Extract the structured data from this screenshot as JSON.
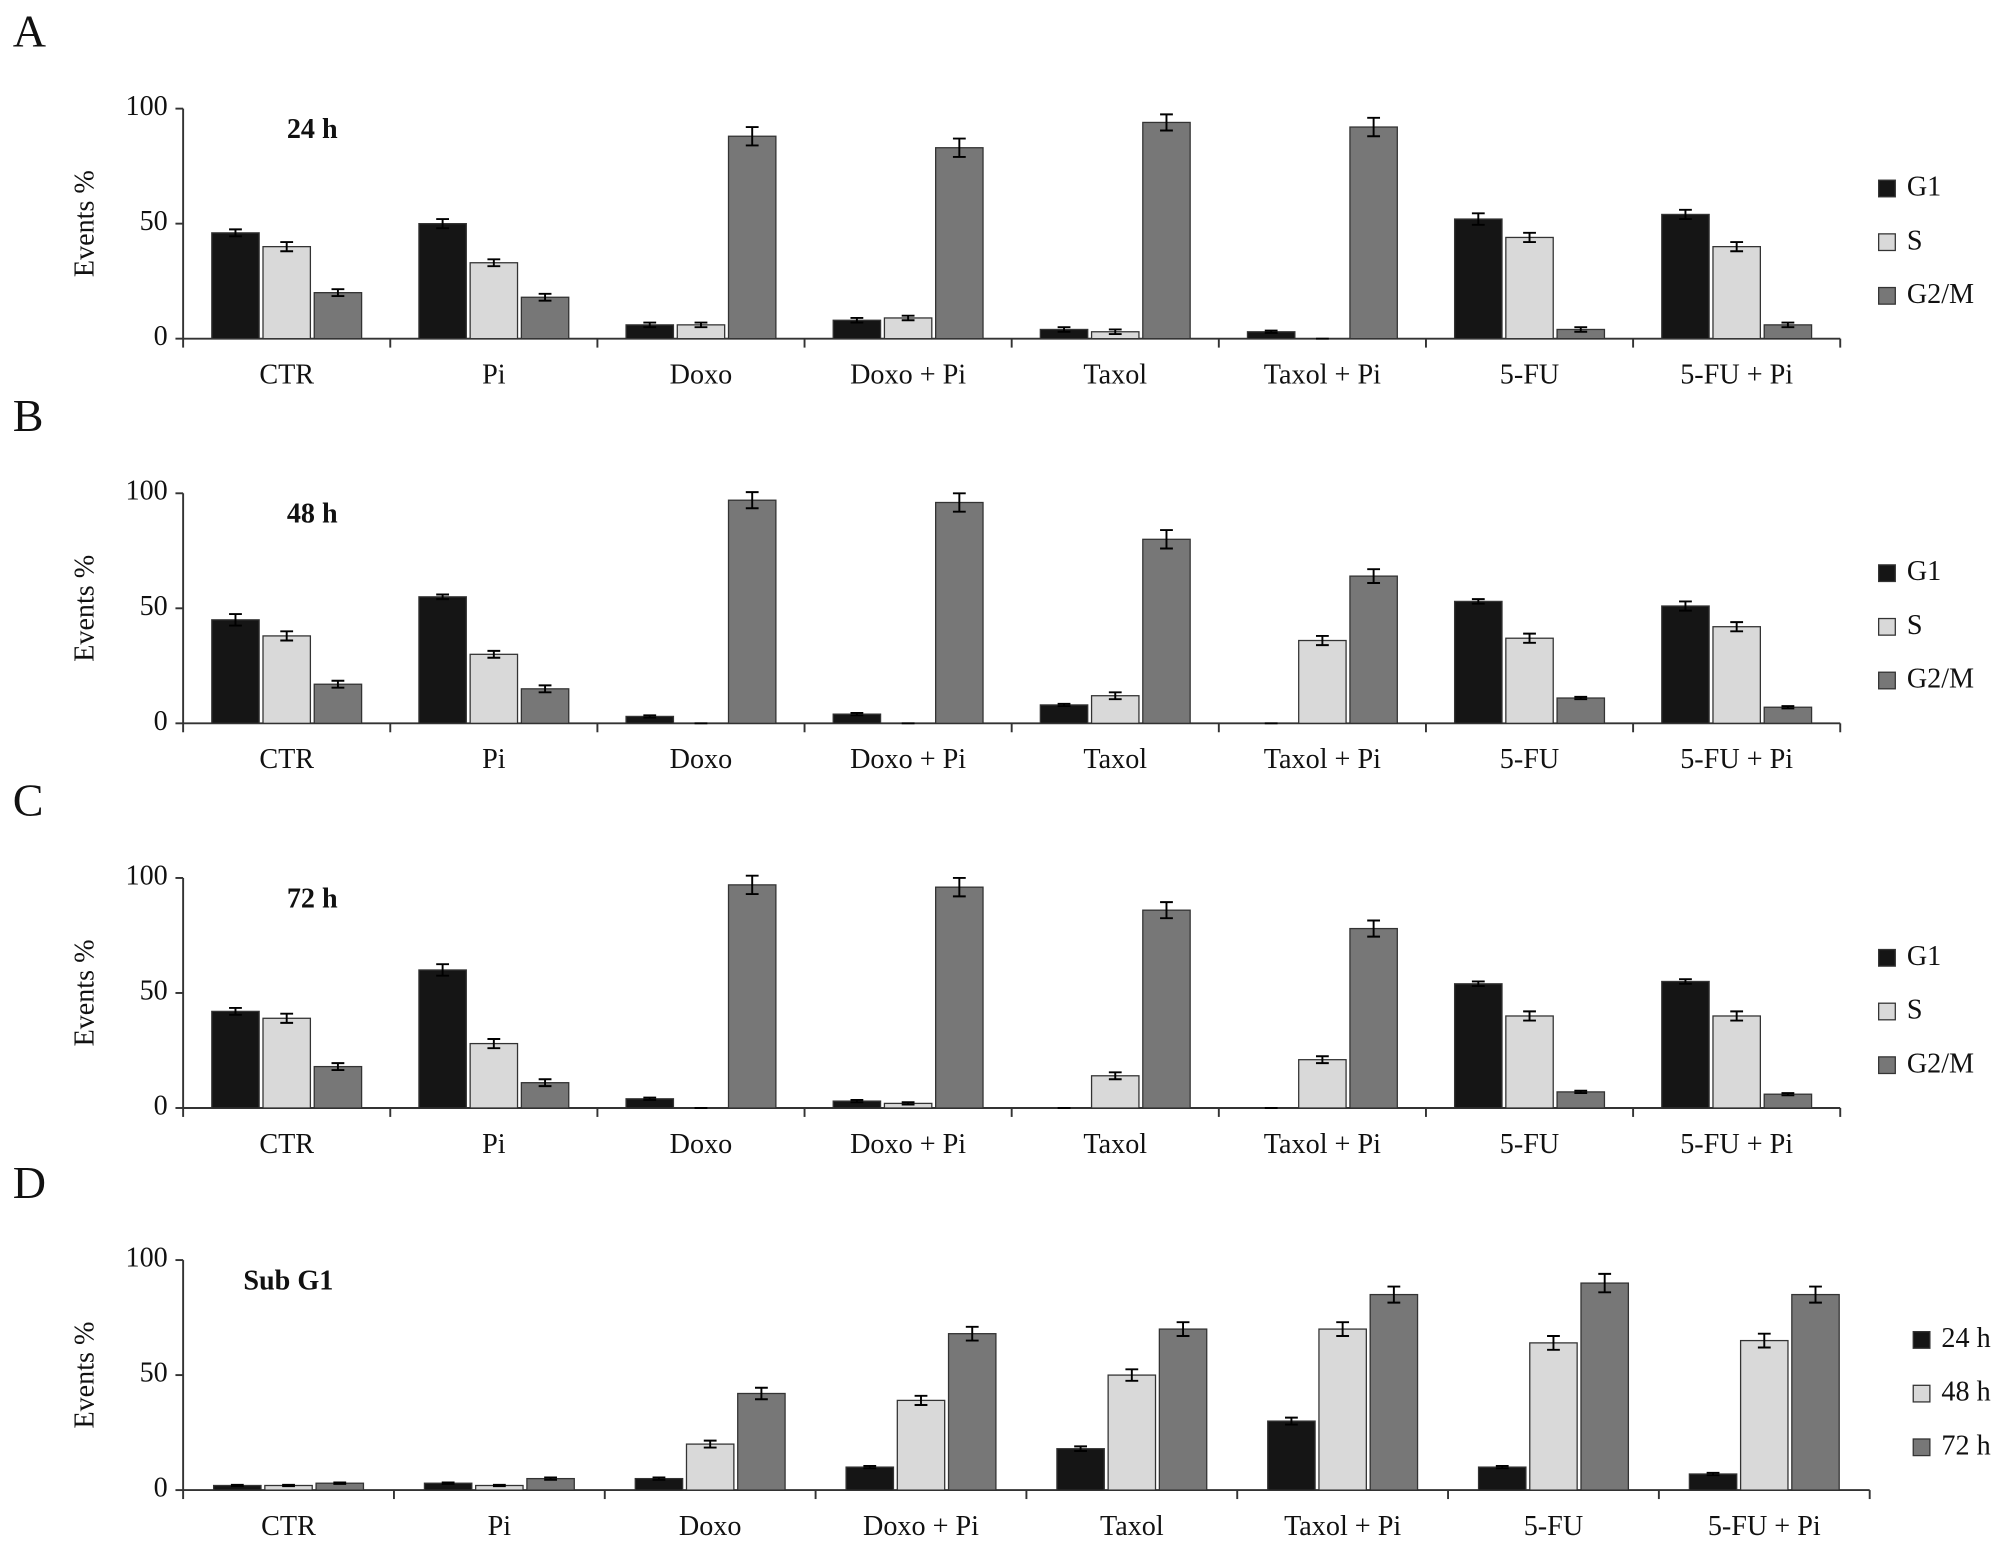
{
  "chart_data": [
    {
      "type": "bar",
      "panel_label": "A",
      "title": "24 h",
      "y_label": "Events %",
      "categories": [
        "CTR",
        "Pi",
        "Doxo",
        "Doxo + Pi",
        "Taxol",
        "Taxol + Pi",
        "5-FU",
        "5-FU + Pi"
      ],
      "series": [
        {
          "name": "G1",
          "color": "#151515",
          "values": [
            46,
            50,
            6,
            8,
            4,
            3,
            52,
            54
          ],
          "errors": [
            1.5,
            2,
            1,
            1,
            1,
            0.5,
            2.5,
            2
          ]
        },
        {
          "name": "S",
          "color": "#d9d9d9",
          "values": [
            40,
            33,
            6,
            9,
            3,
            0,
            44,
            40
          ],
          "errors": [
            2,
            1.5,
            1,
            1,
            1,
            0,
            2,
            2
          ]
        },
        {
          "name": "G2/M",
          "color": "#777777",
          "values": [
            20,
            18,
            88,
            83,
            94,
            92,
            4,
            6
          ],
          "errors": [
            1.5,
            1.5,
            4,
            4,
            3.5,
            4,
            1,
            1
          ]
        }
      ],
      "ylim": [
        0,
        100
      ],
      "yticks": [
        0,
        50,
        100
      ]
    },
    {
      "type": "bar",
      "panel_label": "B",
      "title": "48 h",
      "y_label": "Events %",
      "categories": [
        "CTR",
        "Pi",
        "Doxo",
        "Doxo + Pi",
        "Taxol",
        "Taxol + Pi",
        "5-FU",
        "5-FU + Pi"
      ],
      "series": [
        {
          "name": "G1",
          "color": "#151515",
          "values": [
            45,
            55,
            3,
            4,
            8,
            0,
            53,
            51
          ],
          "errors": [
            2.5,
            1,
            0.5,
            0.5,
            0.5,
            0,
            1,
            2
          ]
        },
        {
          "name": "S",
          "color": "#d9d9d9",
          "values": [
            38,
            30,
            0,
            0,
            12,
            36,
            37,
            42
          ],
          "errors": [
            2,
            1.5,
            0,
            0,
            1.5,
            2,
            2,
            2
          ]
        },
        {
          "name": "G2/M",
          "color": "#777777",
          "values": [
            17,
            15,
            97,
            96,
            80,
            64,
            11,
            7
          ],
          "errors": [
            1.5,
            1.5,
            3.5,
            4,
            4,
            3,
            0.5,
            0.5
          ]
        }
      ],
      "ylim": [
        0,
        100
      ],
      "yticks": [
        0,
        50,
        100
      ]
    },
    {
      "type": "bar",
      "panel_label": "C",
      "title": "72 h",
      "y_label": "Events %",
      "categories": [
        "CTR",
        "Pi",
        "Doxo",
        "Doxo + Pi",
        "Taxol",
        "Taxol + Pi",
        "5-FU",
        "5-FU + Pi"
      ],
      "series": [
        {
          "name": "G1",
          "color": "#151515",
          "values": [
            42,
            60,
            4,
            3,
            0,
            0,
            54,
            55
          ],
          "errors": [
            1.5,
            2.5,
            0.5,
            0.5,
            0,
            0,
            1,
            1
          ]
        },
        {
          "name": "S",
          "color": "#d9d9d9",
          "values": [
            39,
            28,
            0,
            2,
            14,
            21,
            40,
            40
          ],
          "errors": [
            2,
            2,
            0,
            0.5,
            1.5,
            1.5,
            2,
            2
          ]
        },
        {
          "name": "G2/M",
          "color": "#777777",
          "values": [
            18,
            11,
            97,
            96,
            86,
            78,
            7,
            6
          ],
          "errors": [
            1.5,
            1.5,
            4,
            4,
            3.5,
            3.5,
            0.5,
            0.5
          ]
        }
      ],
      "ylim": [
        0,
        100
      ],
      "yticks": [
        0,
        50,
        100
      ]
    },
    {
      "type": "bar",
      "panel_label": "D",
      "title": "Sub G1",
      "y_label": "Events %",
      "categories": [
        "CTR",
        "Pi",
        "Doxo",
        "Doxo + Pi",
        "Taxol",
        "Taxol + Pi",
        "5-FU",
        "5-FU + Pi"
      ],
      "series": [
        {
          "name": "24 h",
          "color": "#151515",
          "values": [
            2,
            3,
            5,
            10,
            18,
            30,
            10,
            7
          ],
          "errors": [
            0.3,
            0.3,
            0.5,
            0.5,
            1,
            1.5,
            0.5,
            0.5
          ]
        },
        {
          "name": "48 h",
          "color": "#d9d9d9",
          "values": [
            2,
            2,
            20,
            39,
            50,
            70,
            64,
            65
          ],
          "errors": [
            0.3,
            0.3,
            1.5,
            2,
            2.5,
            3,
            3,
            3
          ]
        },
        {
          "name": "72 h",
          "color": "#777777",
          "values": [
            3,
            5,
            42,
            68,
            70,
            85,
            90,
            85
          ],
          "errors": [
            0.3,
            0.5,
            2.5,
            3,
            3,
            3.5,
            4,
            3.5
          ]
        }
      ],
      "ylim": [
        0,
        100
      ],
      "yticks": [
        0,
        50,
        100
      ]
    }
  ]
}
